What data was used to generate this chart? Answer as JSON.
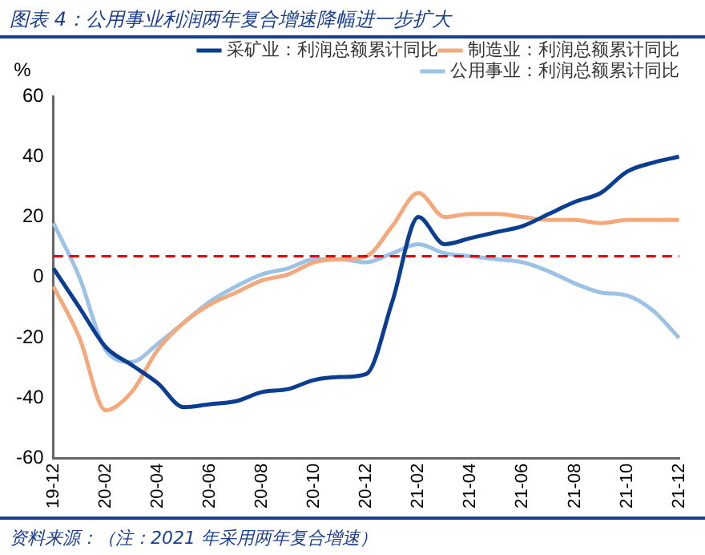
{
  "chart_data": {
    "type": "line",
    "title": "图表 4：公用事业利润两年复合增速降幅进一步扩大",
    "ylabel": "%",
    "categories": [
      "19-12",
      null,
      "20-02",
      null,
      "20-04",
      null,
      "20-06",
      null,
      "20-08",
      null,
      "20-10",
      null,
      "20-12",
      null,
      "21-02",
      null,
      "21-04",
      null,
      "21-06",
      null,
      "21-08",
      null,
      "21-10",
      null,
      "21-12"
    ],
    "series": [
      {
        "name": "采矿业：利润总额累计同比",
        "color": "#0b3d91",
        "values": [
          3,
          -10,
          -23,
          -29,
          -35,
          -43,
          -42,
          -41,
          -38,
          -37,
          -34,
          -33,
          -32,
          -8,
          20,
          11,
          13,
          15,
          17,
          21,
          25,
          28,
          35,
          38,
          40
        ]
      },
      {
        "name": "制造业：利润总额累计同比",
        "color": "#f4a97c",
        "values": [
          -3,
          -20,
          -44,
          -38,
          -24,
          -15,
          -9,
          -5,
          -1,
          1,
          5,
          6,
          7,
          17,
          28,
          20,
          21,
          21,
          20,
          19,
          19,
          18,
          19,
          19,
          19
        ]
      },
      {
        "name": "公用事业：利润总额累计同比",
        "color": "#9cc3e6",
        "values": [
          18,
          0,
          -24,
          -28,
          -22,
          -15,
          -8,
          -3,
          1,
          3,
          6,
          6,
          5,
          8,
          11,
          8,
          7,
          6,
          5,
          2,
          -2,
          -5,
          -6,
          -11,
          -20
        ]
      }
    ],
    "ylim": [
      -60,
      60
    ],
    "yticks": [
      -60,
      -40,
      -20,
      0,
      20,
      40,
      60
    ],
    "grid": false,
    "legend": "top right",
    "marker": "none",
    "line_style": "solid",
    "ref_lines": [
      {
        "axis": "y",
        "value": 7,
        "color": "#e00000",
        "line_style": "dashed"
      }
    ],
    "annotations": [
      "资料来源：（注：2021 年采用两年复合增速）"
    ]
  }
}
